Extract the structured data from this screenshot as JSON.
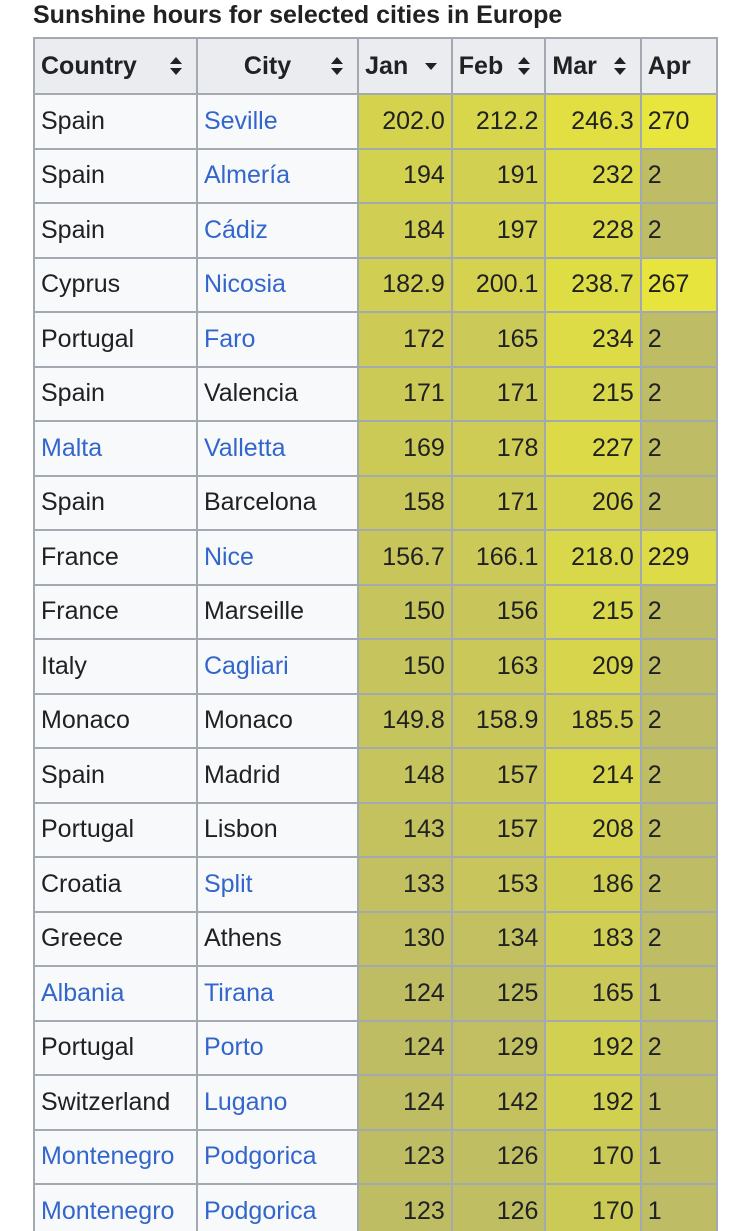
{
  "caption": "Sunshine hours for selected cities in Europe",
  "headers": [
    {
      "label": "Country",
      "sort": "both"
    },
    {
      "label": "City",
      "sort": "both"
    },
    {
      "label": "Jan",
      "sort": "down"
    },
    {
      "label": "Feb",
      "sort": "both"
    },
    {
      "label": "Mar",
      "sort": "both"
    },
    {
      "label": "Apr",
      "sort": "none"
    }
  ],
  "colors": {
    "link": "#3366cc",
    "header_bg": "#eaecf0",
    "cell_bg": "#f8f9fa",
    "border": "#a2a9b1"
  },
  "rows": [
    {
      "country": "Spain",
      "country_link": false,
      "city": "Seville",
      "city_link": true,
      "jan": "202.0",
      "feb": "212.2",
      "mar": "246.3",
      "apr": "270"
    },
    {
      "country": "Spain",
      "country_link": false,
      "city": "Almería",
      "city_link": true,
      "jan": "194",
      "feb": "191",
      "mar": "232",
      "apr": "2"
    },
    {
      "country": "Spain",
      "country_link": false,
      "city": "Cádiz",
      "city_link": true,
      "jan": "184",
      "feb": "197",
      "mar": "228",
      "apr": "2"
    },
    {
      "country": "Cyprus",
      "country_link": false,
      "city": "Nicosia",
      "city_link": true,
      "jan": "182.9",
      "feb": "200.1",
      "mar": "238.7",
      "apr": "267"
    },
    {
      "country": "Portugal",
      "country_link": false,
      "city": "Faro",
      "city_link": true,
      "jan": "172",
      "feb": "165",
      "mar": "234",
      "apr": "2"
    },
    {
      "country": "Spain",
      "country_link": false,
      "city": "Valencia",
      "city_link": false,
      "jan": "171",
      "feb": "171",
      "mar": "215",
      "apr": "2"
    },
    {
      "country": "Malta",
      "country_link": true,
      "city": "Valletta",
      "city_link": true,
      "jan": "169",
      "feb": "178",
      "mar": "227",
      "apr": "2"
    },
    {
      "country": "Spain",
      "country_link": false,
      "city": "Barcelona",
      "city_link": false,
      "jan": "158",
      "feb": "171",
      "mar": "206",
      "apr": "2"
    },
    {
      "country": "France",
      "country_link": false,
      "city": "Nice",
      "city_link": true,
      "jan": "156.7",
      "feb": "166.1",
      "mar": "218.0",
      "apr": "229"
    },
    {
      "country": "France",
      "country_link": false,
      "city": "Marseille",
      "city_link": false,
      "jan": "150",
      "feb": "156",
      "mar": "215",
      "apr": "2"
    },
    {
      "country": "Italy",
      "country_link": false,
      "city": "Cagliari",
      "city_link": true,
      "jan": "150",
      "feb": "163",
      "mar": "209",
      "apr": "2"
    },
    {
      "country": "Monaco",
      "country_link": false,
      "city": "Monaco",
      "city_link": false,
      "jan": "149.8",
      "feb": "158.9",
      "mar": "185.5",
      "apr": "2"
    },
    {
      "country": "Spain",
      "country_link": false,
      "city": "Madrid",
      "city_link": false,
      "jan": "148",
      "feb": "157",
      "mar": "214",
      "apr": "2"
    },
    {
      "country": "Portugal",
      "country_link": false,
      "city": "Lisbon",
      "city_link": false,
      "jan": "143",
      "feb": "157",
      "mar": "208",
      "apr": "2"
    },
    {
      "country": "Croatia",
      "country_link": false,
      "city": "Split",
      "city_link": true,
      "jan": "133",
      "feb": "153",
      "mar": "186",
      "apr": "2"
    },
    {
      "country": "Greece",
      "country_link": false,
      "city": "Athens",
      "city_link": false,
      "jan": "130",
      "feb": "134",
      "mar": "183",
      "apr": "2"
    },
    {
      "country": "Albania",
      "country_link": true,
      "city": "Tirana",
      "city_link": true,
      "jan": "124",
      "feb": "125",
      "mar": "165",
      "apr": "1"
    },
    {
      "country": "Portugal",
      "country_link": false,
      "city": "Porto",
      "city_link": true,
      "jan": "124",
      "feb": "129",
      "mar": "192",
      "apr": "2"
    },
    {
      "country": "Switzerland",
      "country_link": false,
      "city": "Lugano",
      "city_link": true,
      "jan": "124",
      "feb": "142",
      "mar": "192",
      "apr": "1"
    },
    {
      "country": "Montenegro",
      "country_link": true,
      "city": "Podgorica",
      "city_link": true,
      "jan": "123",
      "feb": "126",
      "mar": "170",
      "apr": "1"
    },
    {
      "country": "Montenegro",
      "country_link": true,
      "city": "Podgorica",
      "city_link": true,
      "jan": "123",
      "feb": "126",
      "mar": "170",
      "apr": "1"
    }
  ]
}
